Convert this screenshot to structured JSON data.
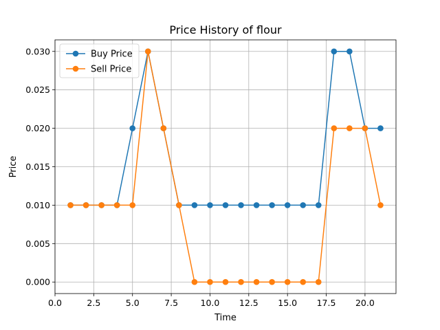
{
  "chart_data": {
    "type": "line",
    "title": "Price History of flour",
    "xlabel": "Time",
    "ylabel": "Price",
    "xlim": [
      0.0,
      22.0
    ],
    "ylim": [
      -0.0015,
      0.0315
    ],
    "xticks": [
      0.0,
      2.5,
      5.0,
      7.5,
      10.0,
      12.5,
      15.0,
      17.5,
      20.0
    ],
    "xtick_labels": [
      "0.0",
      "2.5",
      "5.0",
      "7.5",
      "10.0",
      "12.5",
      "15.0",
      "17.5",
      "20.0"
    ],
    "yticks": [
      0.0,
      0.005,
      0.01,
      0.015,
      0.02,
      0.025,
      0.03
    ],
    "ytick_labels": [
      "0.000",
      "0.005",
      "0.010",
      "0.015",
      "0.020",
      "0.025",
      "0.030"
    ],
    "grid": true,
    "legend_position": "top-left",
    "x": [
      1,
      2,
      3,
      4,
      5,
      6,
      7,
      8,
      9,
      10,
      11,
      12,
      13,
      14,
      15,
      16,
      17,
      18,
      19,
      20,
      21
    ],
    "series": [
      {
        "name": "Buy Price",
        "color": "#1f77b4",
        "marker": "circle",
        "values": [
          0.01,
          0.01,
          0.01,
          0.01,
          0.02,
          0.03,
          0.02,
          0.01,
          0.01,
          0.01,
          0.01,
          0.01,
          0.01,
          0.01,
          0.01,
          0.01,
          0.01,
          0.03,
          0.03,
          0.02,
          0.02
        ]
      },
      {
        "name": "Sell Price",
        "color": "#ff7f0e",
        "marker": "circle",
        "values": [
          0.01,
          0.01,
          0.01,
          0.01,
          0.01,
          0.03,
          0.02,
          0.01,
          0.0,
          0.0,
          0.0,
          0.0,
          0.0,
          0.0,
          0.0,
          0.0,
          0.0,
          0.02,
          0.02,
          0.02,
          0.01
        ]
      }
    ]
  }
}
